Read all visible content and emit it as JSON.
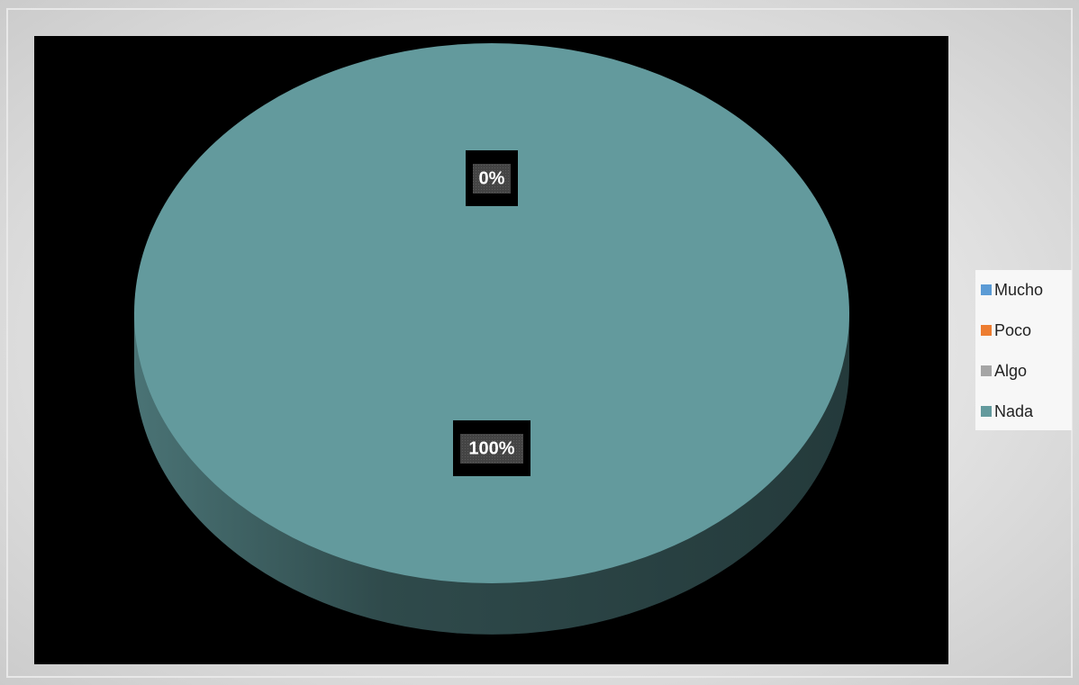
{
  "chart_data": {
    "type": "pie",
    "categories": [
      "Mucho",
      "Poco",
      "Algo",
      "Nada"
    ],
    "values": [
      0,
      0,
      0,
      100
    ],
    "value_labels": [
      "0%",
      "0%",
      "0%",
      "100%"
    ],
    "colors": [
      "#5b9bd5",
      "#ed7d31",
      "#a5a5a5",
      "#639a9d"
    ],
    "legend": "right"
  }
}
